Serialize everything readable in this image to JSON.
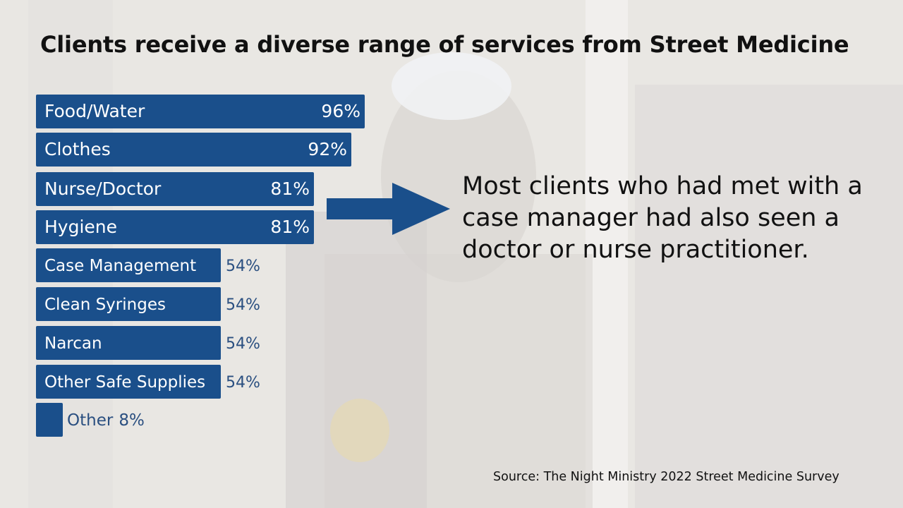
{
  "title": "Clients receive a diverse range of services from Street Medicine",
  "callout": "Most clients who had met with a case manager had also seen a doctor or nurse practitioner.",
  "source": "Source: The Night Ministry 2022 Street Medicine Survey",
  "colors": {
    "bar": "#1a4f8b",
    "outside_label": "#2a4f80",
    "arrow": "#1a4f8b"
  },
  "chart_data": {
    "type": "bar",
    "orientation": "horizontal",
    "title": "Clients receive a diverse range of services from Street Medicine",
    "xlabel": "",
    "ylabel": "",
    "categories": [
      "Food/Water",
      "Clothes",
      "Nurse/Doctor",
      "Hygiene",
      "Case Management",
      "Clean Syringes",
      "Narcan",
      "Other Safe Supplies",
      "Other"
    ],
    "values": [
      96,
      92,
      81,
      81,
      54,
      54,
      54,
      54,
      8
    ],
    "value_labels": [
      "96%",
      "92%",
      "81%",
      "81%",
      "54%",
      "54%",
      "54%",
      "54%",
      "8%"
    ],
    "xlim": [
      0,
      100
    ],
    "grid": false,
    "legend": "none"
  }
}
